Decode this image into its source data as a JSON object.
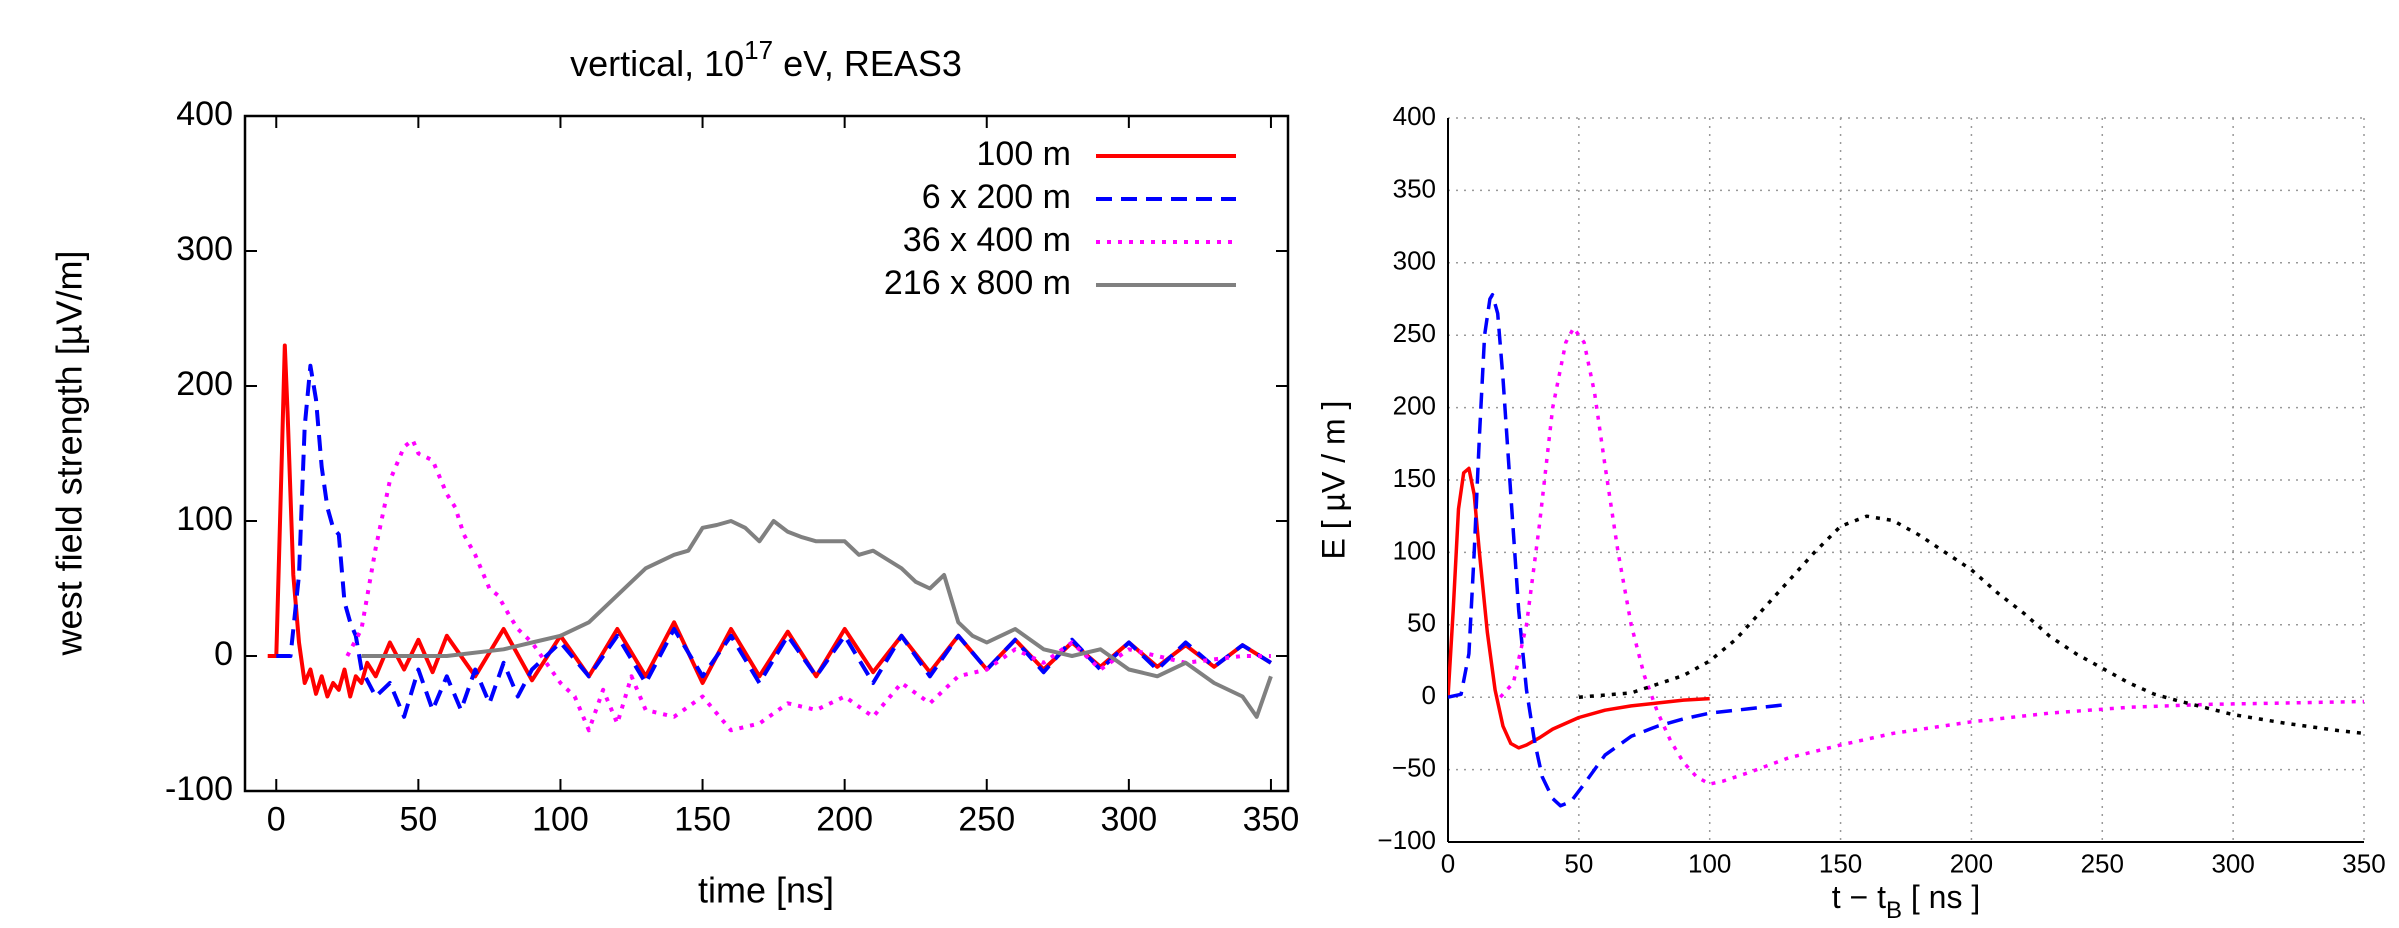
{
  "chart_data": [
    {
      "type": "line",
      "title": [
        "vertical, 10",
        "17",
        " eV, REAS3"
      ],
      "xlabel": "time [ns]",
      "ylabel": "west field strength [µV/m]",
      "xlim": [
        -11,
        356
      ],
      "ylim": [
        -100,
        400
      ],
      "xticks": [
        0,
        50,
        100,
        150,
        200,
        250,
        300,
        350
      ],
      "yticks": [
        -100,
        0,
        100,
        200,
        300,
        400
      ],
      "grid": false,
      "legend": "upper right",
      "series": [
        {
          "name": "100 m",
          "color": "#ff0000",
          "dash": "solid",
          "x": [
            -3,
            0,
            2,
            3,
            4,
            6,
            8,
            10,
            12,
            14,
            16,
            18,
            20,
            22,
            24,
            26,
            28,
            30,
            32,
            35,
            40,
            45,
            50,
            55,
            60,
            70,
            80,
            90,
            100,
            110,
            120,
            130,
            140,
            150,
            160,
            170,
            180,
            190,
            200,
            210,
            220,
            230,
            240,
            250,
            260,
            270,
            280,
            290,
            300,
            310,
            320,
            330,
            340,
            350
          ],
          "values": [
            0,
            0,
            150,
            230,
            180,
            60,
            10,
            -20,
            -10,
            -28,
            -15,
            -30,
            -20,
            -25,
            -10,
            -30,
            -15,
            -20,
            -5,
            -15,
            10,
            -10,
            12,
            -12,
            15,
            -15,
            20,
            -18,
            15,
            -15,
            20,
            -15,
            25,
            -20,
            20,
            -15,
            18,
            -15,
            20,
            -12,
            15,
            -12,
            15,
            -10,
            12,
            -10,
            10,
            -8,
            10,
            -8,
            8,
            -8,
            8,
            -5
          ]
        },
        {
          "name": "6 x 200 m",
          "color": "#0000ff",
          "dash": "dashed",
          "x": [
            0,
            5,
            8,
            10,
            12,
            14,
            16,
            18,
            20,
            22,
            24,
            26,
            28,
            30,
            35,
            40,
            45,
            50,
            55,
            60,
            65,
            70,
            75,
            80,
            85,
            90,
            100,
            110,
            120,
            130,
            140,
            150,
            160,
            170,
            180,
            190,
            200,
            210,
            220,
            230,
            240,
            250,
            260,
            270,
            280,
            290,
            300,
            310,
            320,
            330,
            340,
            350
          ],
          "values": [
            0,
            0,
            60,
            170,
            215,
            190,
            140,
            110,
            95,
            90,
            40,
            25,
            15,
            -10,
            -30,
            -20,
            -45,
            -10,
            -40,
            -15,
            -40,
            -10,
            -35,
            -5,
            -30,
            -10,
            10,
            -15,
            15,
            -20,
            20,
            -15,
            15,
            -20,
            15,
            -15,
            15,
            -20,
            15,
            -15,
            15,
            -10,
            12,
            -12,
            12,
            -10,
            10,
            -10,
            10,
            -8,
            8,
            -5
          ]
        },
        {
          "name": "36 x 400 m",
          "color": "#ff00ff",
          "dash": "dotted",
          "x": [
            25,
            30,
            35,
            40,
            45,
            48,
            50,
            55,
            60,
            63,
            66,
            70,
            75,
            78,
            82,
            85,
            90,
            95,
            100,
            105,
            110,
            115,
            120,
            125,
            130,
            140,
            150,
            160,
            170,
            180,
            190,
            200,
            210,
            220,
            230,
            240,
            250,
            260,
            270,
            280,
            290,
            300,
            320,
            340,
            350
          ],
          "values": [
            0,
            20,
            80,
            130,
            155,
            160,
            150,
            145,
            120,
            110,
            90,
            75,
            50,
            45,
            30,
            20,
            10,
            -5,
            -20,
            -30,
            -55,
            -25,
            -50,
            -15,
            -40,
            -45,
            -30,
            -55,
            -50,
            -35,
            -40,
            -30,
            -45,
            -20,
            -35,
            -15,
            -10,
            5,
            -5,
            10,
            -10,
            5,
            -5,
            0,
            0
          ]
        },
        {
          "name": "216 x 800 m",
          "color": "#808080",
          "dash": "solid",
          "x": [
            30,
            60,
            80,
            90,
            100,
            110,
            115,
            120,
            130,
            140,
            145,
            150,
            155,
            160,
            165,
            170,
            175,
            180,
            185,
            190,
            200,
            205,
            210,
            220,
            225,
            230,
            235,
            240,
            245,
            250,
            260,
            270,
            280,
            290,
            300,
            310,
            320,
            330,
            340,
            345,
            350
          ],
          "values": [
            0,
            0,
            5,
            10,
            15,
            25,
            35,
            45,
            65,
            75,
            78,
            95,
            97,
            100,
            95,
            85,
            100,
            92,
            88,
            85,
            85,
            75,
            78,
            65,
            55,
            50,
            60,
            25,
            15,
            10,
            20,
            5,
            0,
            5,
            -10,
            -15,
            -5,
            -20,
            -30,
            -45,
            -15
          ]
        }
      ]
    },
    {
      "type": "line",
      "xlabel": [
        "t − t",
        "B",
        "  [ ns ]"
      ],
      "ylabel": "E  [ µV / m ]",
      "xlim": [
        0,
        350
      ],
      "ylim": [
        -100,
        400
      ],
      "xticks": [
        0,
        50,
        100,
        150,
        200,
        250,
        300,
        350
      ],
      "yticks": [
        {
          "value": -100,
          "label": "−100"
        },
        {
          "value": -50,
          "label": "−50"
        },
        0,
        50,
        100,
        150,
        200,
        250,
        300,
        350,
        400
      ],
      "grid": true,
      "series": [
        {
          "color": "#ff0000",
          "dash": "solid",
          "x": [
            0,
            2,
            4,
            6,
            8,
            10,
            12,
            15,
            18,
            21,
            24,
            27,
            30,
            35,
            40,
            50,
            60,
            70,
            80,
            90,
            100
          ],
          "values": [
            0,
            60,
            130,
            155,
            158,
            140,
            100,
            45,
            5,
            -20,
            -32,
            -35,
            -33,
            -28,
            -22,
            -14,
            -9,
            -6,
            -4,
            -2,
            -1
          ]
        },
        {
          "color": "#0000ff",
          "dash": "dashed",
          "x": [
            0,
            5,
            8,
            10,
            12,
            14,
            16,
            17,
            19,
            21,
            24,
            27,
            30,
            33,
            36,
            40,
            43,
            47,
            52,
            60,
            70,
            80,
            90,
            100,
            115,
            130
          ],
          "values": [
            0,
            2,
            30,
            100,
            180,
            250,
            275,
            278,
            265,
            220,
            140,
            60,
            5,
            -30,
            -55,
            -70,
            -75,
            -72,
            -60,
            -40,
            -27,
            -20,
            -15,
            -11,
            -8,
            -5
          ]
        },
        {
          "color": "#ff00ff",
          "dash": "dotted",
          "x": [
            20,
            25,
            30,
            35,
            40,
            45,
            48,
            52,
            56,
            60,
            65,
            70,
            75,
            80,
            85,
            90,
            95,
            100,
            105,
            115,
            130,
            150,
            170,
            200,
            230,
            260,
            290,
            320,
            350
          ],
          "values": [
            0,
            10,
            50,
            120,
            200,
            245,
            255,
            245,
            210,
            160,
            100,
            50,
            15,
            -10,
            -30,
            -45,
            -55,
            -60,
            -58,
            -52,
            -42,
            -33,
            -25,
            -17,
            -11,
            -7,
            -5,
            -4,
            -3
          ]
        },
        {
          "color": "#000000",
          "dash": "dotted",
          "x": [
            50,
            70,
            90,
            100,
            110,
            120,
            130,
            140,
            150,
            160,
            170,
            180,
            190,
            200,
            210,
            220,
            230,
            240,
            250,
            260,
            270,
            280,
            300,
            320,
            340,
            350
          ],
          "values": [
            0,
            3,
            15,
            25,
            40,
            60,
            80,
            100,
            118,
            125,
            122,
            112,
            100,
            88,
            72,
            58,
            42,
            30,
            20,
            10,
            2,
            -3,
            -12,
            -18,
            -23,
            -25
          ]
        }
      ]
    }
  ]
}
